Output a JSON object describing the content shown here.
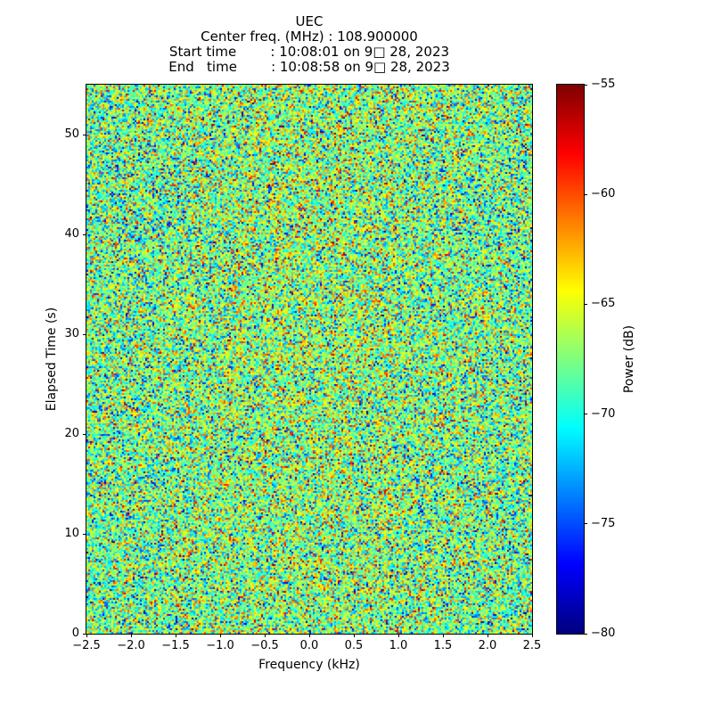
{
  "chart_data": {
    "type": "heatmap",
    "title_lines": [
      "UEC",
      "Center freq. (MHz) : 108.900000",
      "Start time        : 10:08:01 on 9□ 28, 2023",
      "End   time        : 10:08:58 on 9□ 28, 2023"
    ],
    "xlabel": "Frequency (kHz)",
    "ylabel": "Elapsed Time (s)",
    "x_range": [
      -2.5,
      2.5
    ],
    "y_range": [
      0,
      55
    ],
    "x_ticks": [
      {
        "v": -2.5,
        "label": "−2.5"
      },
      {
        "v": -2.0,
        "label": "−2.0"
      },
      {
        "v": -1.5,
        "label": "−1.5"
      },
      {
        "v": -1.0,
        "label": "−1.0"
      },
      {
        "v": -0.5,
        "label": "−0.5"
      },
      {
        "v": 0.0,
        "label": "0.0"
      },
      {
        "v": 0.5,
        "label": "0.5"
      },
      {
        "v": 1.0,
        "label": "1.0"
      },
      {
        "v": 1.5,
        "label": "1.5"
      },
      {
        "v": 2.0,
        "label": "2.0"
      },
      {
        "v": 2.5,
        "label": "2.5"
      }
    ],
    "y_ticks": [
      {
        "v": 0,
        "label": "0"
      },
      {
        "v": 10,
        "label": "10"
      },
      {
        "v": 20,
        "label": "20"
      },
      {
        "v": 30,
        "label": "30"
      },
      {
        "v": 40,
        "label": "40"
      },
      {
        "v": 50,
        "label": "50"
      }
    ],
    "colorbar": {
      "label": "Power (dB)",
      "min_db": -80,
      "max_db": -55,
      "colormap": "jet",
      "ticks": [
        {
          "v": -55,
          "label": "−55"
        },
        {
          "v": -60,
          "label": "−60"
        },
        {
          "v": -65,
          "label": "−65"
        },
        {
          "v": -70,
          "label": "−70"
        },
        {
          "v": -75,
          "label": "−75"
        },
        {
          "v": -80,
          "label": "−80"
        }
      ]
    },
    "heatmap_model": {
      "description": "broadband random RF noise speckle, no coherent signal; slight warm enhancement near 0 kHz",
      "mean_db": -68.0,
      "std_db": 4.2,
      "center_enhancement_db": 1.0,
      "center_sigma_khz": 1.1,
      "cols": 250,
      "rows": 308,
      "seed": 20230928
    }
  }
}
